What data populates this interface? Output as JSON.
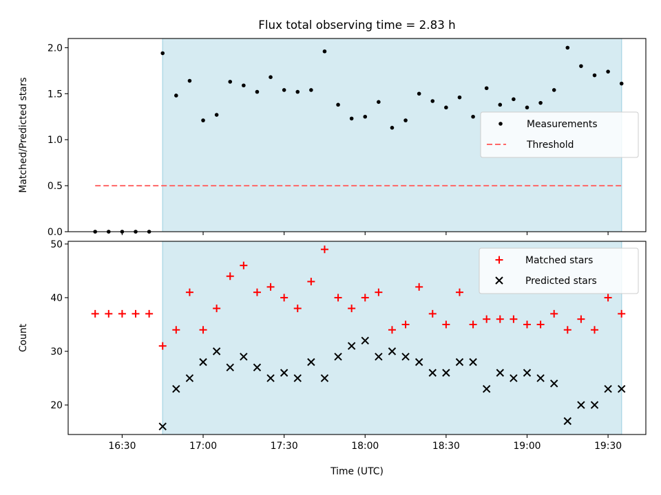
{
  "figure": {
    "title": "Flux total observing time = 2.83 h",
    "xlabel": "Time (UTC)"
  },
  "colors": {
    "observing_window": "#add8e6",
    "measurement": "#000000",
    "threshold": "#ff6666",
    "matched": "#ff0000",
    "predicted": "#000000"
  },
  "chart_data": [
    {
      "type": "scatter",
      "ylabel": "Matched/Predicted stars",
      "ylim": [
        0,
        2.1
      ],
      "yticks": [
        0.0,
        0.5,
        1.0,
        1.5,
        2.0
      ],
      "ytick_labels": [
        "0.0",
        "0.5",
        "1.0",
        "1.5",
        "2.0"
      ],
      "xlim": [
        "16:10",
        "19:44"
      ],
      "xticks": [
        "16:30",
        "17:00",
        "17:30",
        "18:00",
        "18:30",
        "19:00",
        "19:30"
      ],
      "observing_window": [
        "16:45",
        "19:35"
      ],
      "legend": {
        "placement": "center-right"
      },
      "threshold": {
        "name": "Threshold",
        "value": 0.5,
        "x": [
          "16:20",
          "19:35"
        ]
      },
      "series": [
        {
          "name": "Measurements",
          "marker": "dot",
          "x": [
            "16:20",
            "16:25",
            "16:30",
            "16:35",
            "16:40",
            "16:45",
            "16:50",
            "16:55",
            "17:00",
            "17:05",
            "17:10",
            "17:15",
            "17:20",
            "17:25",
            "17:30",
            "17:35",
            "17:40",
            "17:45",
            "17:50",
            "17:55",
            "18:00",
            "18:05",
            "18:10",
            "18:15",
            "18:20",
            "18:25",
            "18:30",
            "18:35",
            "18:40",
            "18:45",
            "18:50",
            "18:55",
            "19:00",
            "19:05",
            "19:10",
            "19:15",
            "19:20",
            "19:25",
            "19:30",
            "19:35"
          ],
          "y": [
            0.0,
            0.0,
            0.0,
            0.0,
            0.0,
            1.94,
            1.48,
            1.64,
            1.21,
            1.27,
            1.63,
            1.59,
            1.52,
            1.68,
            1.54,
            1.52,
            1.54,
            1.96,
            1.38,
            1.23,
            1.25,
            1.41,
            1.13,
            1.21,
            1.5,
            1.42,
            1.35,
            1.46,
            1.25,
            1.56,
            1.38,
            1.44,
            1.35,
            1.4,
            1.54,
            2.0,
            1.8,
            1.7,
            1.74,
            1.61
          ]
        }
      ]
    },
    {
      "type": "scatter",
      "ylabel": "Count",
      "ylim": [
        14.5,
        50.5
      ],
      "yticks": [
        20,
        30,
        40,
        50
      ],
      "ytick_labels": [
        "20",
        "30",
        "40",
        "50"
      ],
      "xlim": [
        "16:10",
        "19:44"
      ],
      "xticks": [
        "16:30",
        "17:00",
        "17:30",
        "18:00",
        "18:30",
        "19:00",
        "19:30"
      ],
      "xtick_labels": [
        "16:30",
        "17:00",
        "17:30",
        "18:00",
        "18:30",
        "19:00",
        "19:30"
      ],
      "observing_window": [
        "16:45",
        "19:35"
      ],
      "legend": {
        "placement": "top-right"
      },
      "series": [
        {
          "name": "Matched stars",
          "marker": "plus",
          "x": [
            "16:20",
            "16:25",
            "16:30",
            "16:35",
            "16:40",
            "16:45",
            "16:50",
            "16:55",
            "17:00",
            "17:05",
            "17:10",
            "17:15",
            "17:20",
            "17:25",
            "17:30",
            "17:35",
            "17:40",
            "17:45",
            "17:50",
            "17:55",
            "18:00",
            "18:05",
            "18:10",
            "18:15",
            "18:20",
            "18:25",
            "18:30",
            "18:35",
            "18:40",
            "18:45",
            "18:50",
            "18:55",
            "19:00",
            "19:05",
            "19:10",
            "19:15",
            "19:20",
            "19:25",
            "19:30",
            "19:35"
          ],
          "y": [
            37,
            37,
            37,
            37,
            37,
            31,
            34,
            41,
            34,
            38,
            44,
            46,
            41,
            42,
            40,
            38,
            43,
            49,
            40,
            38,
            40,
            41,
            34,
            35,
            42,
            37,
            35,
            41,
            35,
            36,
            36,
            36,
            35,
            35,
            37,
            34,
            36,
            34,
            40,
            37
          ]
        },
        {
          "name": "Predicted stars",
          "marker": "x",
          "x": [
            "16:45",
            "16:50",
            "16:55",
            "17:00",
            "17:05",
            "17:10",
            "17:15",
            "17:20",
            "17:25",
            "17:30",
            "17:35",
            "17:40",
            "17:45",
            "17:50",
            "17:55",
            "18:00",
            "18:05",
            "18:10",
            "18:15",
            "18:20",
            "18:25",
            "18:30",
            "18:35",
            "18:40",
            "18:45",
            "18:50",
            "18:55",
            "19:00",
            "19:05",
            "19:10",
            "19:15",
            "19:20",
            "19:25",
            "19:30",
            "19:35"
          ],
          "y": [
            16,
            23,
            25,
            28,
            30,
            27,
            29,
            27,
            25,
            26,
            25,
            28,
            25,
            29,
            31,
            32,
            29,
            30,
            29,
            28,
            26,
            26,
            28,
            28,
            23,
            26,
            25,
            26,
            25,
            24,
            17,
            20,
            20,
            23,
            23
          ]
        }
      ]
    }
  ]
}
